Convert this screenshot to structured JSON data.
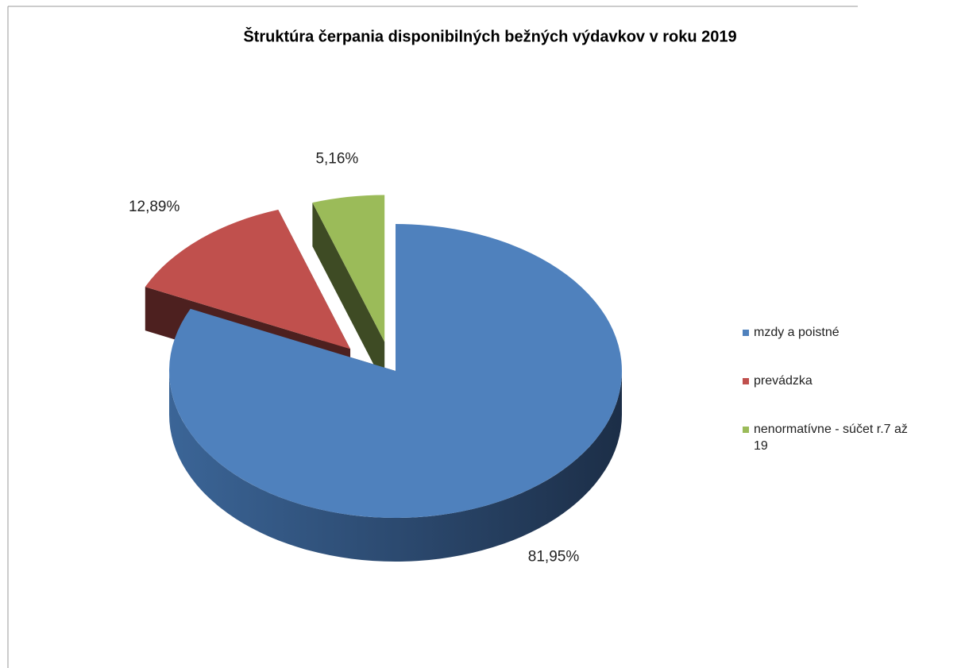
{
  "chart_data": {
    "type": "pie",
    "title": "Štruktúra čerpania disponibilných  bežných výdavkov v roku 2019",
    "categories": [
      "mzdy a poistné",
      "prevádzka",
      "nenormatívne - súčet r.7 až 19"
    ],
    "values": [
      81.95,
      12.89,
      5.16
    ],
    "value_labels": [
      "81,95%",
      "12,89%",
      "5,16%"
    ],
    "colors": [
      "#4f81bd",
      "#c0504d",
      "#9bbb59"
    ],
    "legend": "right"
  }
}
